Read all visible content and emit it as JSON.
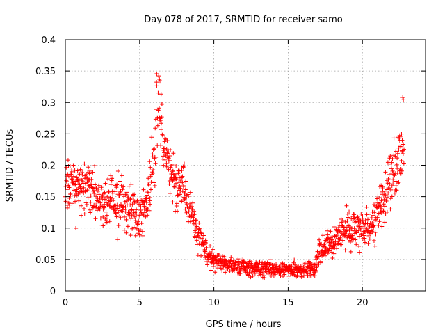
{
  "chart_data": {
    "type": "scatter",
    "title": "Day 078 of 2017, SRMTID for receiver samo",
    "xlabel": "GPS time / hours",
    "ylabel": "SRMTID / TECUs",
    "xlim": [
      0,
      24.25
    ],
    "ylim": [
      0,
      0.4
    ],
    "x_ticks": [
      0,
      5,
      10,
      15,
      20
    ],
    "x_tick_labels": [
      "0",
      "5",
      "10",
      "15",
      "20"
    ],
    "y_ticks": [
      0,
      0.05,
      0.1,
      0.15,
      0.2,
      0.25,
      0.3,
      0.35,
      0.4
    ],
    "y_tick_labels": [
      "0",
      "0.05",
      "0.1",
      "0.15",
      "0.2",
      "0.25",
      "0.3",
      "0.35",
      "0.4"
    ],
    "grid": true,
    "marker": "+",
    "color": "#ff0000",
    "series": [
      {
        "name": "SRMTID",
        "profile_x": [
          0,
          0.5,
          1,
          1.5,
          2,
          2.5,
          3,
          3.5,
          4,
          4.5,
          5,
          5.5,
          5.9,
          6.1,
          6.3,
          6.6,
          7,
          7.5,
          7.9,
          8.2,
          8.6,
          9,
          9.3,
          9.6,
          10,
          10.5,
          11,
          12,
          13,
          14,
          15,
          16,
          16.8,
          17.1,
          17.6,
          18,
          18.5,
          19,
          19.5,
          20,
          20.5,
          21,
          21.5,
          22,
          22.5,
          22.8
        ],
        "profile_y": [
          0.17,
          0.175,
          0.16,
          0.17,
          0.15,
          0.14,
          0.145,
          0.14,
          0.13,
          0.13,
          0.12,
          0.15,
          0.2,
          0.27,
          0.3,
          0.22,
          0.2,
          0.17,
          0.17,
          0.14,
          0.11,
          0.09,
          0.07,
          0.055,
          0.05,
          0.045,
          0.04,
          0.038,
          0.036,
          0.035,
          0.034,
          0.033,
          0.035,
          0.06,
          0.07,
          0.075,
          0.09,
          0.1,
          0.1,
          0.1,
          0.1,
          0.12,
          0.15,
          0.19,
          0.21,
          0.25
        ],
        "profile_spread": [
          0.045,
          0.045,
          0.045,
          0.04,
          0.04,
          0.04,
          0.04,
          0.04,
          0.04,
          0.04,
          0.04,
          0.04,
          0.05,
          0.07,
          0.06,
          0.04,
          0.035,
          0.035,
          0.035,
          0.03,
          0.03,
          0.03,
          0.02,
          0.015,
          0.015,
          0.012,
          0.012,
          0.012,
          0.012,
          0.012,
          0.012,
          0.012,
          0.012,
          0.02,
          0.02,
          0.025,
          0.03,
          0.03,
          0.03,
          0.03,
          0.03,
          0.03,
          0.04,
          0.04,
          0.05,
          0.06
        ],
        "observed_min": 0.02,
        "observed_max": 0.362,
        "x_range_observed": [
          0,
          22.8
        ]
      }
    ]
  }
}
